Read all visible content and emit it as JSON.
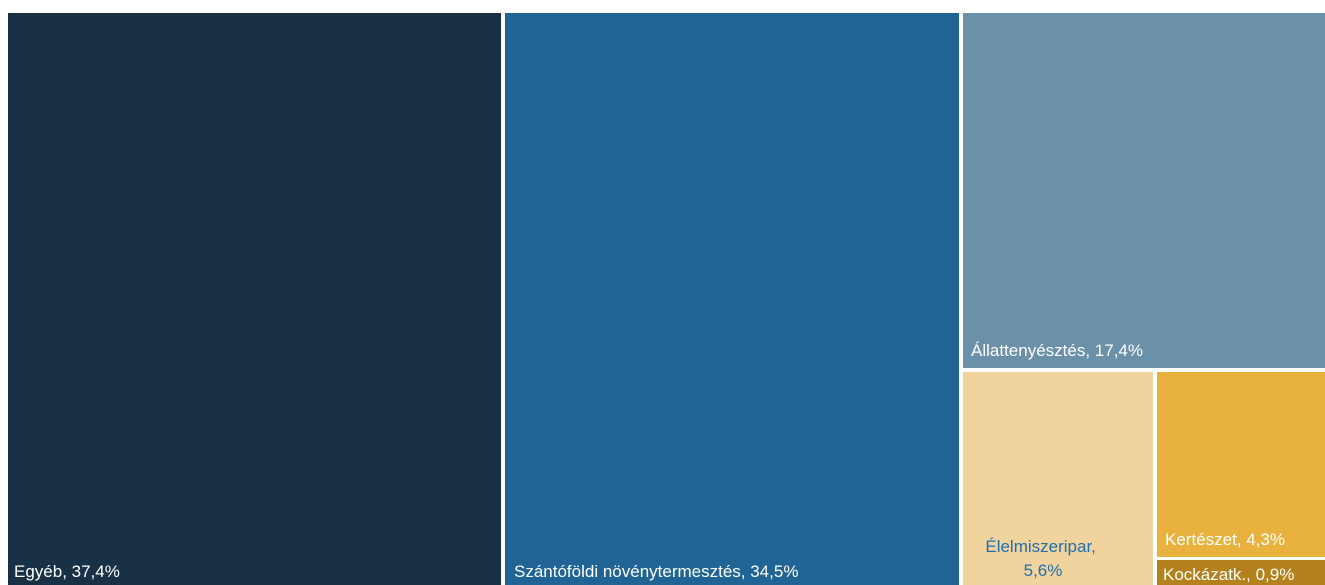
{
  "chart_data": {
    "type": "treemap",
    "title": "",
    "items": [
      {
        "label": "Egyéb, 37,4%",
        "name": "Egyéb",
        "value": 37.4,
        "color": "#183145",
        "label_color": "#ffffff"
      },
      {
        "label": "Szántóföldi növénytermesztés, 34,5%",
        "name": "Szántóföldi növénytermesztés",
        "value": 34.5,
        "color": "#1f6494",
        "label_color": "#ffffff"
      },
      {
        "label": "Állattenyésztés, 17,4%",
        "name": "Állattenyésztés",
        "value": 17.4,
        "color": "#6b90aa",
        "label_color": "#ffffff"
      },
      {
        "label_lines": [
          "Élelmiszeripar,",
          "5,6%"
        ],
        "name": "Élelmiszeripar",
        "value": 5.6,
        "color": "#f1d39e",
        "label_color": "#1f6eb0"
      },
      {
        "label": "Kertészet, 4,3%",
        "name": "Kertészet",
        "value": 4.3,
        "color": "#e9b23f",
        "label_color": "#ffffff"
      },
      {
        "label": "Kockázatk., 0,9%",
        "name": "Kockázatk.",
        "value": 0.9,
        "color": "#b5811d",
        "label_color": "#ffffff"
      }
    ]
  }
}
